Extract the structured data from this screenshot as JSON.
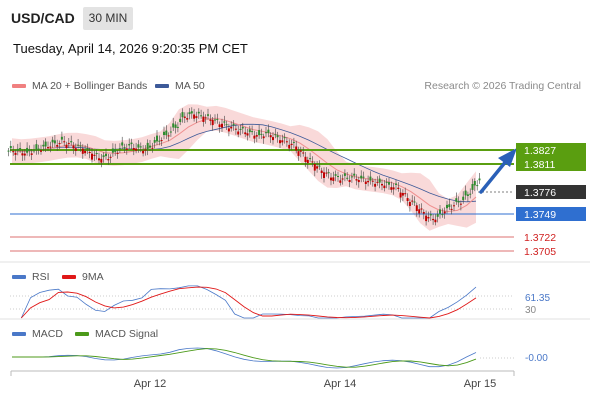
{
  "header": {
    "symbol": "USD/CAD",
    "interval": "30 MIN",
    "datetime": "Tuesday, April 14, 2026 9:20:35 PM CET"
  },
  "legend_main": [
    {
      "label": "MA 20 + Bollinger Bands",
      "color": "#f08080"
    },
    {
      "label": "MA 50",
      "color": "#3d5a99"
    }
  ],
  "legend_rsi": [
    {
      "label": "RSI",
      "color": "#4a78c8"
    },
    {
      "label": "9MA",
      "color": "#e01818"
    }
  ],
  "legend_macd": [
    {
      "label": "MACD",
      "color": "#4a78c8"
    },
    {
      "label": "MACD Signal",
      "color": "#4c9a1a"
    }
  ],
  "copyright": "Research © 2026 Trading Central",
  "colors": {
    "resistance": "#5a9e10",
    "support": "#2f6fd0",
    "target_red": "#d02020",
    "last_price_bg": "#333333",
    "bollinger": "#f7cccc",
    "ma20": "#ef8f8f",
    "ma50": "#3d5a99",
    "arrow": "#2a60b8"
  },
  "chart_data": [
    {
      "type": "candlestick",
      "x": [
        "Apr 12",
        "Apr 14",
        "Apr 15"
      ],
      "ylim": [
        1.3695,
        1.3855
      ],
      "series": [
        {
          "name": "MA 20 + Bollinger Bands"
        },
        {
          "name": "MA 50"
        }
      ],
      "levels": [
        {
          "value": "1.3827",
          "role": "resistance"
        },
        {
          "value": "1.3811",
          "role": "resistance"
        },
        {
          "value": "1.3776",
          "role": "last"
        },
        {
          "value": "1.3749",
          "role": "support"
        },
        {
          "value": "1.3722",
          "role": "target"
        },
        {
          "value": "1.3705",
          "role": "target"
        }
      ],
      "close_path": [
        1.3803,
        1.3801,
        1.3804,
        1.3807,
        1.381,
        1.3812,
        1.3808,
        1.3805,
        1.38,
        1.3795,
        1.3797,
        1.3805,
        1.3808,
        1.3806,
        1.3804,
        1.3812,
        1.3818,
        1.3825,
        1.3836,
        1.3838,
        1.3836,
        1.3833,
        1.3829,
        1.3826,
        1.3823,
        1.3821,
        1.3818,
        1.382,
        1.3816,
        1.3812,
        1.3807,
        1.3797,
        1.379,
        1.3782,
        1.3777,
        1.3776,
        1.3777,
        1.3776,
        1.3774,
        1.3772,
        1.377,
        1.3767,
        1.3757,
        1.375,
        1.374,
        1.3736,
        1.3744,
        1.375,
        1.3755,
        1.3765,
        1.3776
      ]
    },
    {
      "type": "line",
      "series": [
        {
          "name": "RSI"
        },
        {
          "name": "9MA"
        }
      ],
      "levels": [
        "61.35",
        "30"
      ]
    },
    {
      "type": "line",
      "series": [
        {
          "name": "MACD"
        },
        {
          "name": "MACD Signal"
        }
      ],
      "levels": [
        "-0.00"
      ]
    }
  ]
}
